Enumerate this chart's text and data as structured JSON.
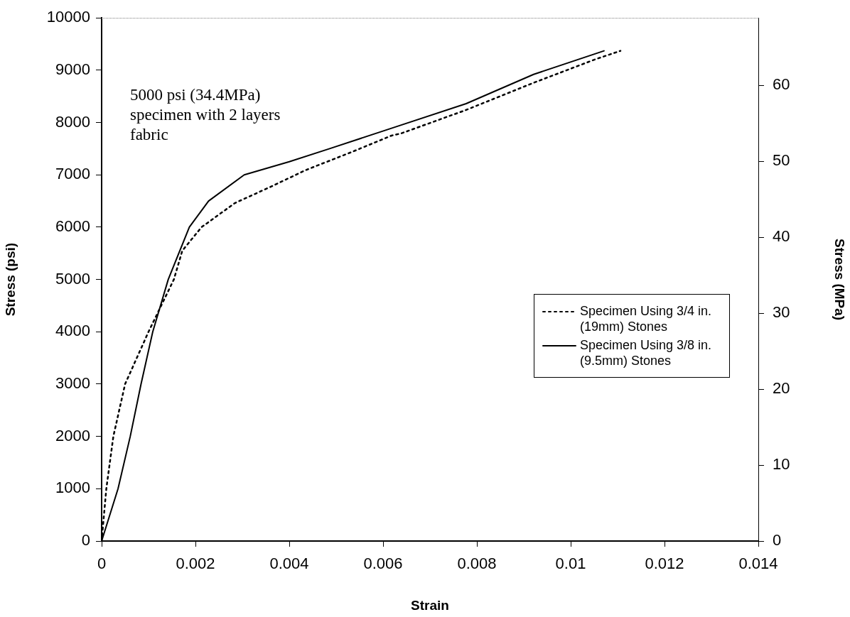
{
  "chart_data": {
    "type": "line",
    "xlabel": "Strain",
    "ylabel": "Stress (psi)",
    "y2label": "Stress (MPa)",
    "xlim": [
      0,
      0.014
    ],
    "xticks": [
      0,
      0.002,
      0.004,
      0.006,
      0.008,
      0.01,
      0.012,
      0.014
    ],
    "ylim": [
      0,
      10000
    ],
    "yticks": [
      0,
      1000,
      2000,
      3000,
      4000,
      5000,
      6000,
      7000,
      8000,
      9000,
      10000
    ],
    "y2lim": [
      0,
      68.9
    ],
    "y2ticks": [
      0,
      10,
      20,
      30,
      40,
      50,
      60
    ],
    "grid": false,
    "legend": "bottom right",
    "marker": "none",
    "annotations": [
      "5000 psi (34.4MPa) specimen with 2 layers fabric"
    ],
    "series": [
      {
        "name": "Specimen Using 3/4 in. (19mm) Stones",
        "color": "#000000",
        "line_style": "dotted",
        "x": [
          0,
          0.0001,
          0.00025,
          0.0005,
          0.001,
          0.00127,
          0.00154,
          0.00172,
          0.00213,
          0.00284,
          0.0036,
          0.00435,
          0.00537,
          0.00618,
          0.00638,
          0.00777,
          0.00921,
          0.01053,
          0.01106
        ],
        "values": [
          0,
          1000,
          2000,
          3000,
          4000,
          4500,
          5000,
          5550,
          6000,
          6460,
          6770,
          7090,
          7450,
          7750,
          7790,
          8240,
          8760,
          9210,
          9370
        ]
      },
      {
        "name": "Specimen Using 3/8 in. (9.5mm) Stones",
        "color": "#000000",
        "line_style": "solid",
        "x": [
          0,
          0.00035,
          0.00061,
          0.00084,
          0.00109,
          0.00142,
          0.00187,
          0.00228,
          0.00304,
          0.004,
          0.00486,
          0.00618,
          0.00777,
          0.00921,
          0.01071
        ],
        "values": [
          0,
          1000,
          2000,
          3000,
          4000,
          5000,
          6000,
          6500,
          7000,
          7250,
          7500,
          7890,
          8360,
          8920,
          9370
        ]
      }
    ]
  }
}
